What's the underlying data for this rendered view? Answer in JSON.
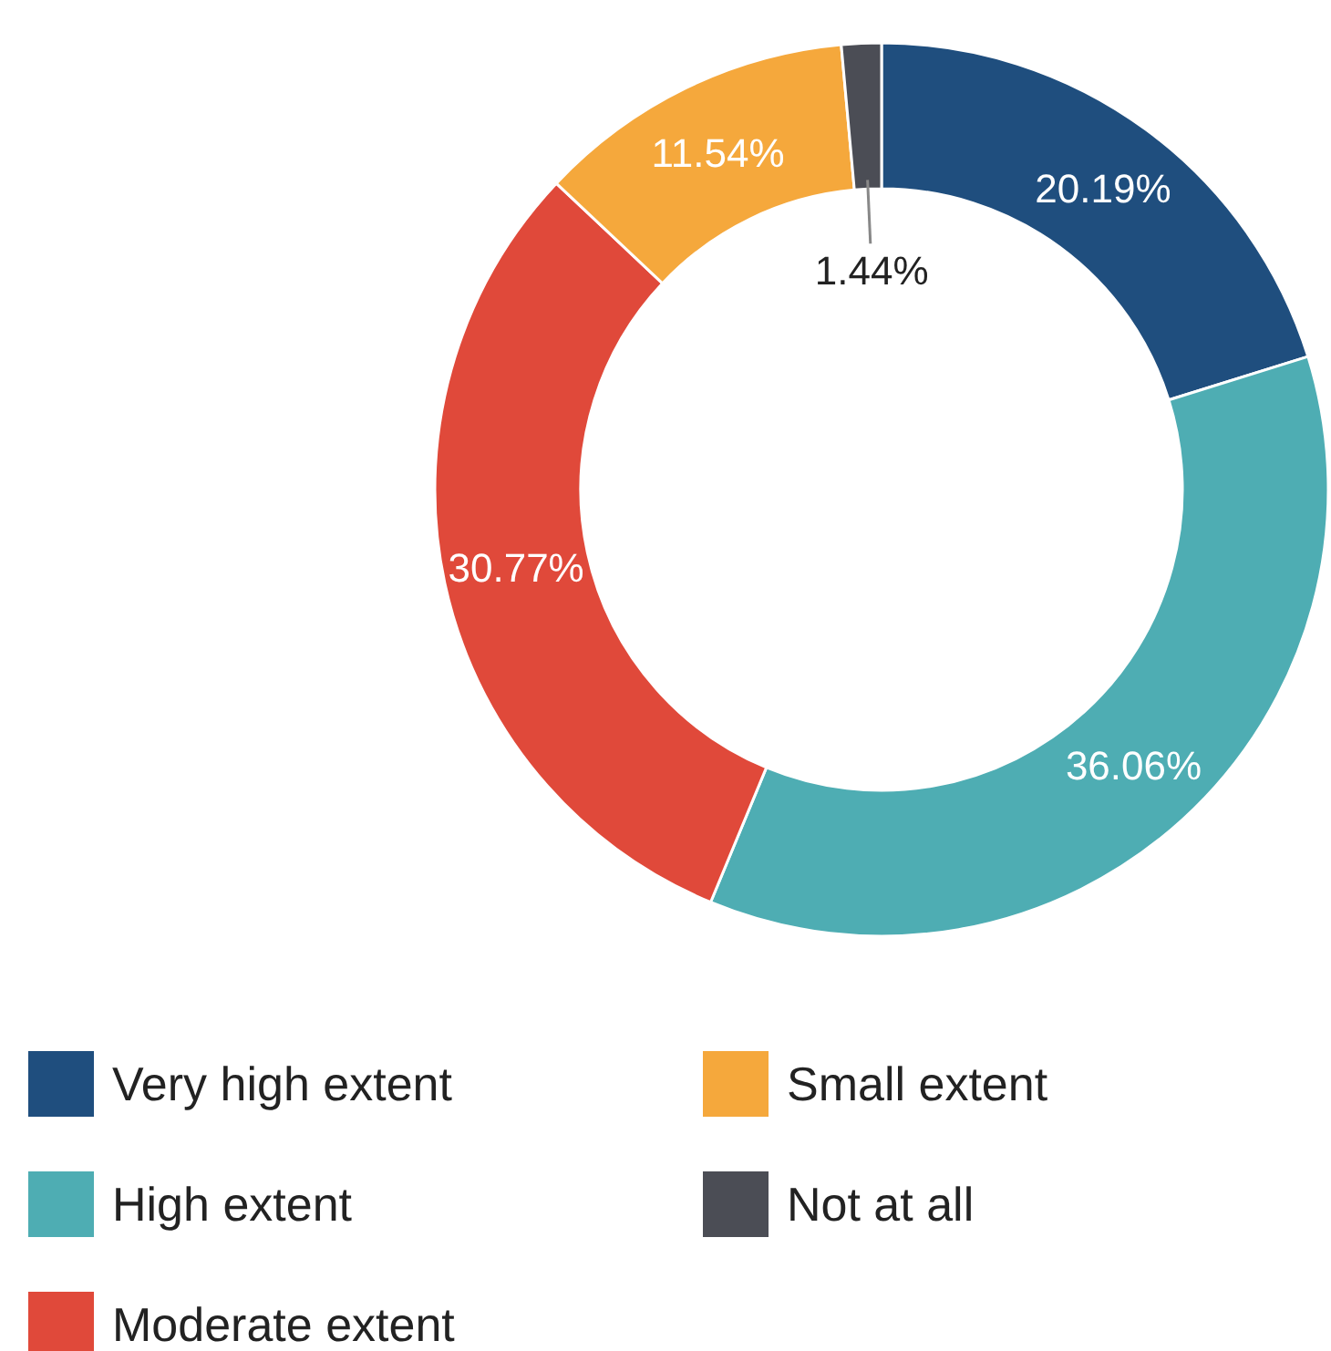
{
  "chart_data": {
    "type": "donut",
    "categories": [
      "Very high extent",
      "High extent",
      "Moderate extent",
      "Small extent",
      "Not at all"
    ],
    "values": [
      20.19,
      36.06,
      30.77,
      11.54,
      1.44
    ],
    "colors": [
      "#1f4e7e",
      "#4eadb3",
      "#e0493a",
      "#f5a83c",
      "#4b4d55"
    ],
    "value_labels": [
      "20.19%",
      "36.06%",
      "30.77%",
      "11.54%",
      "1.44%"
    ],
    "legend": "bottom"
  }
}
